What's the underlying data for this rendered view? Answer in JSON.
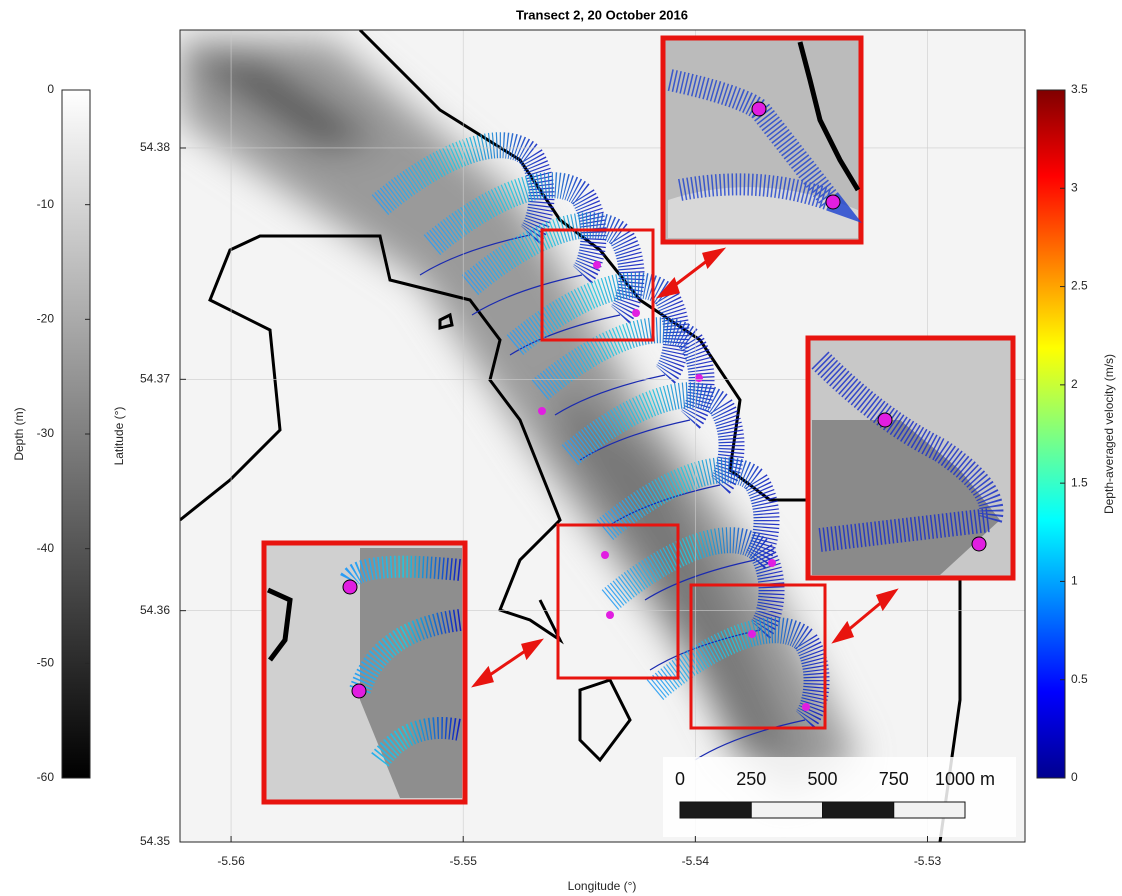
{
  "chart_data": {
    "type": "map",
    "title": "Transect 2, 20 October 2016",
    "xlabel": "Longitude (°)",
    "ylabel": "Latitude (°)",
    "xlim": [
      -5.5622,
      -5.5258
    ],
    "ylim": [
      54.35,
      54.3851
    ],
    "xticks": [
      -5.56,
      -5.55,
      -5.54,
      -5.53
    ],
    "yticks": [
      54.35,
      54.36,
      54.37,
      54.38
    ],
    "grid": true,
    "colorbars": [
      {
        "label": "Depth (m)",
        "lim": [
          -60,
          0
        ],
        "ticks": [
          0,
          -10,
          -20,
          -30,
          -40,
          -50,
          -60
        ]
      },
      {
        "label": "Depth-averaged velocity (m/s)",
        "lim": [
          0,
          3.5
        ],
        "ticks": [
          0,
          0.5,
          1,
          1.5,
          2,
          2.5,
          3,
          3.5
        ]
      }
    ],
    "scale_bar": {
      "ticks": [
        0,
        250,
        500,
        750,
        {
          "value": 1000,
          "label": "1000 m"
        }
      ]
    }
  }
}
